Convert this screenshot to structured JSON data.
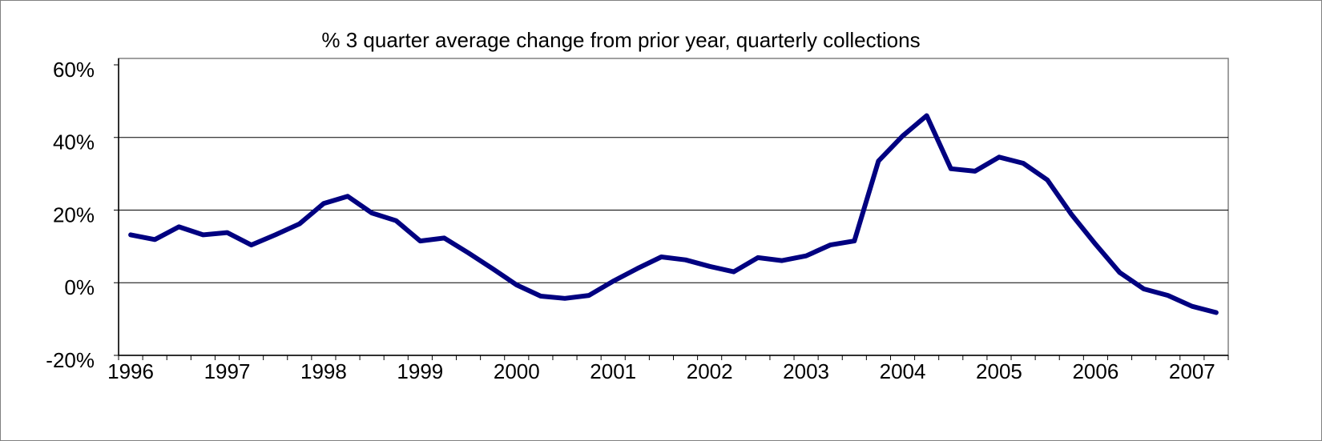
{
  "chart_data": {
    "type": "line",
    "title": "% 3 quarter average change from prior year, quarterly collections",
    "categories": [
      "1996",
      null,
      null,
      null,
      "1997",
      null,
      null,
      null,
      "1998",
      null,
      null,
      null,
      "1999",
      null,
      null,
      null,
      "2000",
      null,
      null,
      null,
      "2001",
      null,
      null,
      null,
      "2002",
      null,
      null,
      null,
      "2003",
      null,
      null,
      null,
      "2004",
      null,
      null,
      null,
      "2005",
      null,
      null,
      null,
      "2006",
      null,
      null,
      null,
      "2007",
      null
    ],
    "series": [
      {
        "color": "#000080",
        "values": [
          13.2,
          11.9,
          15.4,
          13.2,
          13.8,
          10.4,
          13.2,
          16.2,
          21.8,
          23.8,
          19.2,
          17.1,
          11.5,
          12.3,
          8.2,
          3.9,
          -0.6,
          -3.7,
          -4.3,
          -3.5,
          0.4,
          3.9,
          7.1,
          6.3,
          4.5,
          3.0,
          6.9,
          6.1,
          7.4,
          10.4,
          11.5,
          33.5,
          40.4,
          46.0,
          31.4,
          30.7,
          34.6,
          32.9,
          28.3,
          18.8,
          10.6,
          2.8,
          -1.7,
          -3.5,
          -6.5,
          -8.2
        ]
      }
    ],
    "ylim": [
      -20,
      60
    ],
    "yticks": [
      {
        "value": -20,
        "label": "-20%"
      },
      {
        "value": 0,
        "label": "0%"
      },
      {
        "value": 20,
        "label": "20%"
      },
      {
        "value": 40,
        "label": "40%"
      },
      {
        "value": 60,
        "label": "60%"
      }
    ],
    "grid": true
  }
}
